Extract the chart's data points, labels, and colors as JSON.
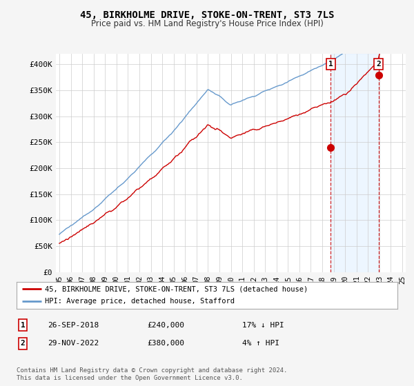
{
  "title": "45, BIRKHOLME DRIVE, STOKE-ON-TRENT, ST3 7LS",
  "subtitle": "Price paid vs. HM Land Registry's House Price Index (HPI)",
  "ylim": [
    0,
    420000
  ],
  "yticks": [
    0,
    50000,
    100000,
    150000,
    200000,
    250000,
    300000,
    350000,
    400000
  ],
  "ytick_labels": [
    "£0",
    "£50K",
    "£100K",
    "£150K",
    "£200K",
    "£250K",
    "£300K",
    "£350K",
    "£400K"
  ],
  "hpi_color": "#6699cc",
  "price_color": "#cc0000",
  "marker1_t": 23.75,
  "marker1_price": 240000,
  "marker2_t": 27.917,
  "marker2_price": 380000,
  "legend_label1": "45, BIRKHOLME DRIVE, STOKE-ON-TRENT, ST3 7LS (detached house)",
  "legend_label2": "HPI: Average price, detached house, Stafford",
  "note1_date": "26-SEP-2018",
  "note1_price": "£240,000",
  "note1_hpi": "17% ↓ HPI",
  "note2_date": "29-NOV-2022",
  "note2_price": "£380,000",
  "note2_hpi": "4% ↑ HPI",
  "footer": "Contains HM Land Registry data © Crown copyright and database right 2024.\nThis data is licensed under the Open Government Licence v3.0.",
  "bg_color": "#f5f5f5",
  "plot_bg": "#ffffff",
  "shade_color": "#ddeeff",
  "shade_alpha": 0.5
}
